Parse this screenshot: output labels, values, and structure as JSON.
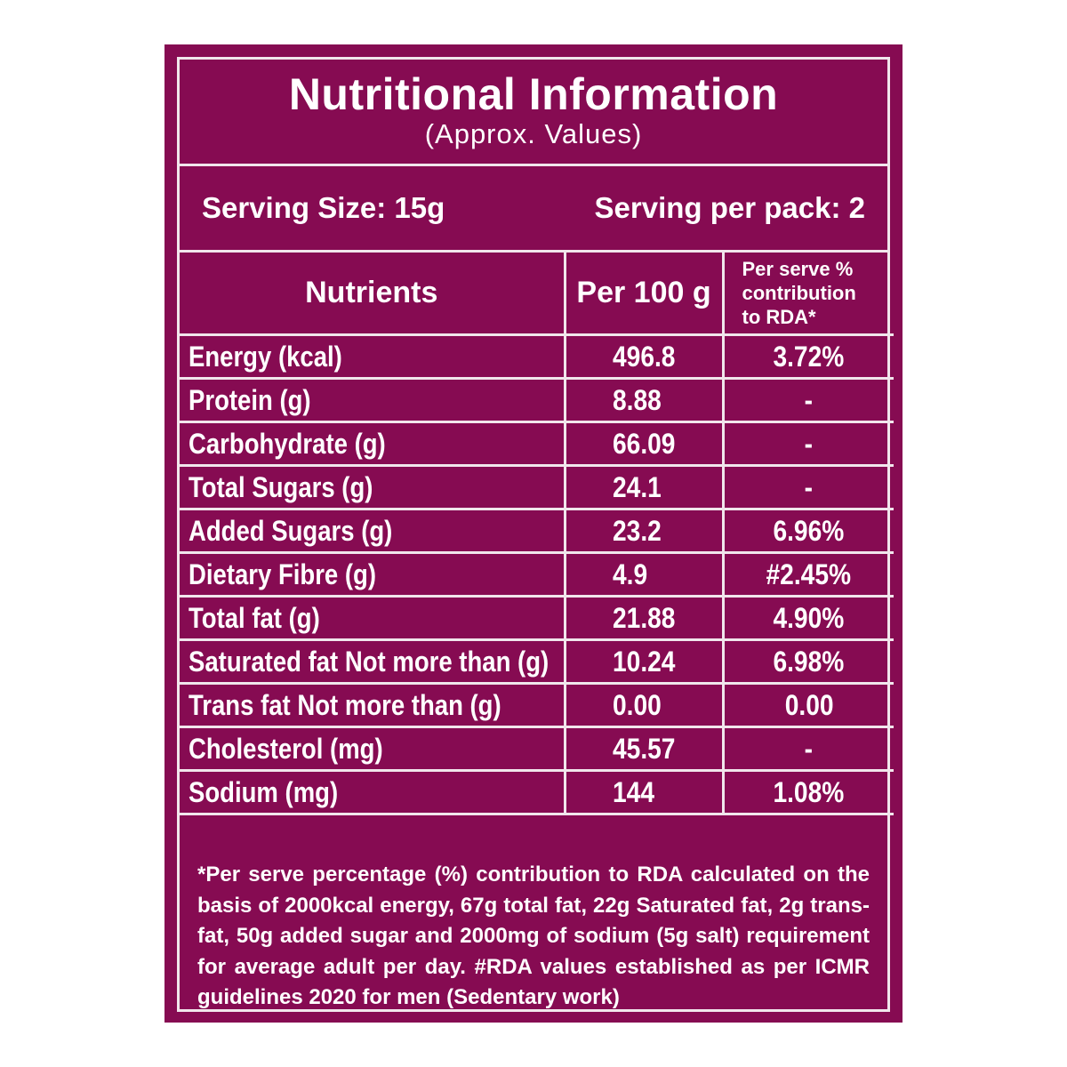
{
  "title": "Nutritional Information",
  "subtitle": "(Approx. Values)",
  "serving": {
    "size": "Serving Size: 15g",
    "per_pack": "Serving per pack: 2"
  },
  "table": {
    "headers": {
      "nutrients": "Nutrients",
      "per100": "Per 100 g",
      "rda_line1": "Per serve %",
      "rda_line2": "contribution",
      "rda_line3": "to RDA*"
    },
    "rows": [
      {
        "name": "Energy (kcal)",
        "per100": "496.8",
        "rda": "3.72%"
      },
      {
        "name": "Protein (g)",
        "per100": "8.88",
        "rda": "-"
      },
      {
        "name": "Carbohydrate (g)",
        "per100": "66.09",
        "rda": "-"
      },
      {
        "name": "Total Sugars (g)",
        "per100": "24.1",
        "rda": "-"
      },
      {
        "name": "Added Sugars (g)",
        "per100": "23.2",
        "rda": "6.96%"
      },
      {
        "name": "Dietary Fibre (g)",
        "per100": "4.9",
        "rda": "#2.45%"
      },
      {
        "name": "Total fat (g)",
        "per100": "21.88",
        "rda": "4.90%"
      },
      {
        "name": "Saturated fat Not more than (g)",
        "per100": "10.24",
        "rda": "6.98%"
      },
      {
        "name": "Trans fat Not more than (g)",
        "per100": "0.00",
        "rda": "0.00"
      },
      {
        "name": "Cholesterol (mg)",
        "per100": "45.57",
        "rda": "-"
      },
      {
        "name": "Sodium (mg)",
        "per100": "144",
        "rda": "1.08%"
      }
    ]
  },
  "footnote": "*Per serve percentage (%) contribution to RDA calculated on the basis of 2000kcal energy, 67g total fat, 22g Saturated fat, 2g trans-fat, 50g added sugar and 2000mg of sodium (5g salt) requirement for average adult per day. #RDA values established as per ICMR guidelines 2020 for men (Sedentary work)",
  "colors": {
    "background": "#860b52",
    "rule": "#f1e6ec",
    "text": "#ffffff"
  }
}
